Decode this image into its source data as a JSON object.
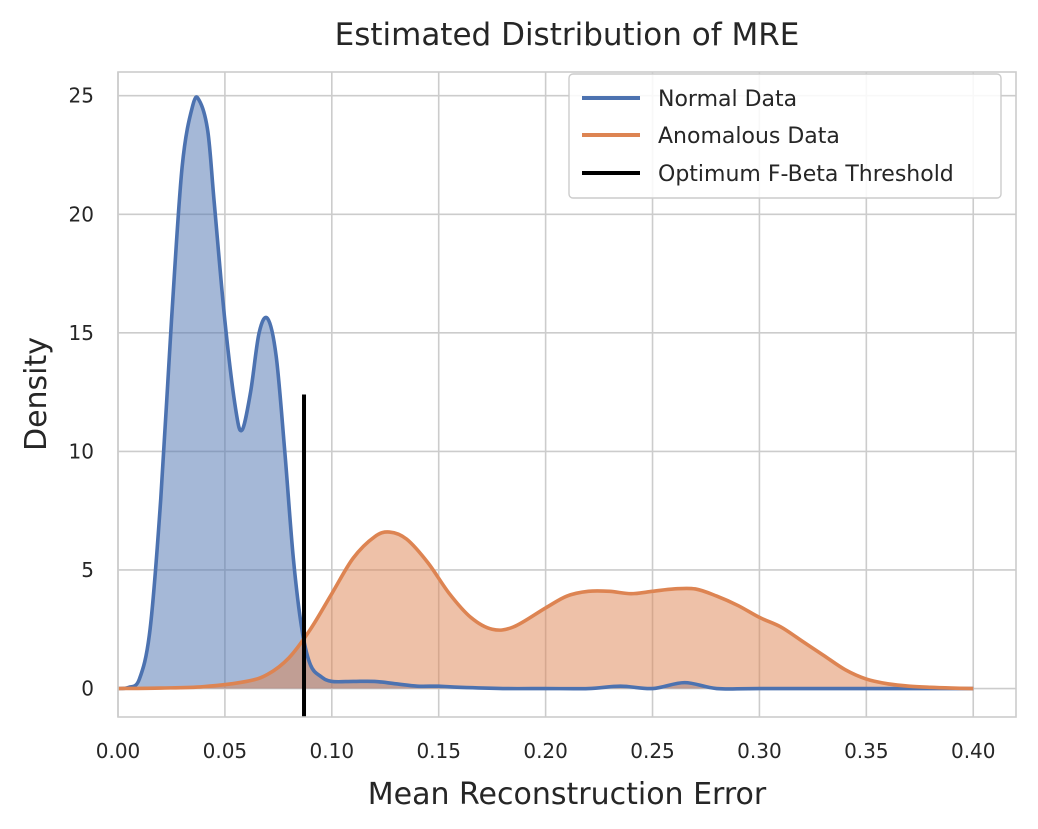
{
  "chart_data": {
    "type": "area",
    "title": "Estimated Distribution of MRE",
    "xlabel": "Mean Reconstruction Error",
    "ylabel": "Density",
    "xlim": [
      0.0,
      0.42
    ],
    "ylim": [
      -1.2,
      26.0
    ],
    "x_ticks": [
      0.0,
      0.05,
      0.1,
      0.15,
      0.2,
      0.25,
      0.3,
      0.35,
      0.4
    ],
    "x_tick_labels": [
      "0.00",
      "0.05",
      "0.10",
      "0.15",
      "0.20",
      "0.25",
      "0.30",
      "0.35",
      "0.40"
    ],
    "y_ticks": [
      0,
      5,
      10,
      15,
      20,
      25
    ],
    "y_tick_labels": [
      "0",
      "5",
      "10",
      "15",
      "20",
      "25"
    ],
    "grid": true,
    "legend_position": "top-right",
    "series": [
      {
        "name": "Normal Data",
        "kind": "kde",
        "color": "#4c72b0",
        "x": [
          0.0,
          0.005,
          0.01,
          0.015,
          0.02,
          0.025,
          0.03,
          0.035,
          0.038,
          0.042,
          0.045,
          0.05,
          0.055,
          0.058,
          0.062,
          0.066,
          0.07,
          0.074,
          0.078,
          0.082,
          0.086,
          0.09,
          0.095,
          0.1,
          0.11,
          0.12,
          0.13,
          0.14,
          0.15,
          0.16,
          0.18,
          0.2,
          0.22,
          0.235,
          0.25,
          0.265,
          0.28,
          0.3,
          0.35,
          0.4
        ],
        "values": [
          0.0,
          0.05,
          0.4,
          2.5,
          8.0,
          15.5,
          22.0,
          24.6,
          24.8,
          23.5,
          20.5,
          15.5,
          11.8,
          10.9,
          12.5,
          15.0,
          15.6,
          14.0,
          10.0,
          5.5,
          2.5,
          1.0,
          0.5,
          0.3,
          0.3,
          0.3,
          0.2,
          0.1,
          0.1,
          0.05,
          0.0,
          0.0,
          0.0,
          0.1,
          0.0,
          0.25,
          0.0,
          0.0,
          0.0,
          0.0
        ]
      },
      {
        "name": "Anomalous Data",
        "kind": "kde",
        "color": "#dd8452",
        "x": [
          0.0,
          0.02,
          0.04,
          0.06,
          0.07,
          0.08,
          0.09,
          0.1,
          0.11,
          0.12,
          0.127,
          0.135,
          0.145,
          0.155,
          0.165,
          0.175,
          0.185,
          0.2,
          0.21,
          0.22,
          0.23,
          0.24,
          0.25,
          0.26,
          0.27,
          0.28,
          0.29,
          0.3,
          0.31,
          0.32,
          0.33,
          0.34,
          0.35,
          0.36,
          0.37,
          0.38,
          0.39,
          0.4
        ],
        "values": [
          0.0,
          0.02,
          0.08,
          0.3,
          0.6,
          1.3,
          2.5,
          4.0,
          5.5,
          6.4,
          6.6,
          6.3,
          5.3,
          4.0,
          3.0,
          2.5,
          2.6,
          3.4,
          3.9,
          4.1,
          4.1,
          4.0,
          4.1,
          4.2,
          4.2,
          3.9,
          3.5,
          3.0,
          2.6,
          2.0,
          1.4,
          0.8,
          0.4,
          0.2,
          0.1,
          0.05,
          0.02,
          0.0
        ]
      },
      {
        "name": "Optimum F-Beta Threshold",
        "kind": "vline",
        "color": "#000000",
        "x": 0.087,
        "y_range": [
          -1.2,
          12.4
        ]
      }
    ]
  }
}
